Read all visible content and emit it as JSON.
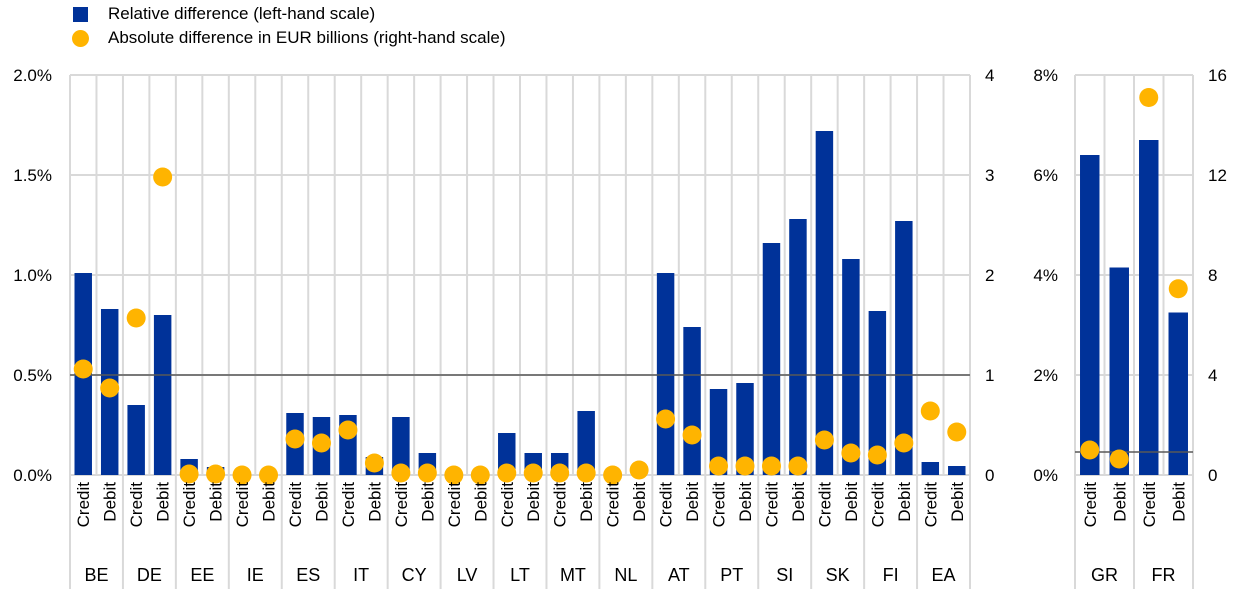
{
  "legend": {
    "bar_label": "Relative difference (left-hand scale)",
    "dot_label": "Absolute difference in EUR billions (right-hand scale)"
  },
  "colors": {
    "bar": "#003299",
    "dot": "#FFB400",
    "grid": "#D9D9D9",
    "refline": "#595959"
  },
  "chart_data": [
    {
      "type": "bar",
      "panel": "main",
      "title": "",
      "left_axis": {
        "min": 0,
        "max": 2.0,
        "ticks": [
          0,
          0.5,
          1.0,
          1.5,
          2.0
        ],
        "tick_labels": [
          "0.0%",
          "0.5%",
          "1.0%",
          "1.5%",
          "2.0%"
        ]
      },
      "right_axis": {
        "min": 0,
        "max": 4,
        "ticks": [
          0,
          1,
          2,
          3,
          4
        ],
        "tick_labels": [
          "0",
          "1",
          "2",
          "3",
          "4"
        ]
      },
      "reference_line_left": 0.5,
      "groups": [
        "BE",
        "DE",
        "EE",
        "IE",
        "ES",
        "IT",
        "CY",
        "LV",
        "LT",
        "MT",
        "NL",
        "AT",
        "PT",
        "SI",
        "SK",
        "FI",
        "EA"
      ],
      "subcategories": [
        "Credit",
        "Debit"
      ],
      "series": [
        {
          "name": "Relative difference (left-hand scale)",
          "axis": "left",
          "values": [
            1.01,
            0.83,
            0.35,
            0.8,
            0.08,
            0.04,
            0,
            0,
            0.31,
            0.29,
            0.3,
            0.09,
            0.29,
            0.11,
            0,
            0,
            0.21,
            0.11,
            0.11,
            0.32,
            0,
            0,
            1.01,
            0.74,
            0.43,
            0.46,
            1.16,
            1.28,
            1.72,
            1.08,
            0.82,
            1.27,
            0.065,
            0.045
          ]
        },
        {
          "name": "Absolute difference in EUR billions (right-hand scale)",
          "axis": "right",
          "values": [
            1.06,
            0.87,
            1.57,
            2.98,
            0.01,
            0.01,
            0,
            0,
            0.36,
            0.32,
            0.45,
            0.12,
            0.02,
            0.02,
            0,
            0,
            0.02,
            0.02,
            0.02,
            0.02,
            0,
            0.05,
            0.56,
            0.4,
            0.09,
            0.09,
            0.09,
            0.09,
            0.35,
            0.22,
            0.2,
            0.32,
            0.64,
            0.43
          ]
        }
      ]
    },
    {
      "type": "bar",
      "panel": "side",
      "title": "",
      "left_axis": {
        "min": 0,
        "max": 8,
        "ticks": [
          0,
          2,
          4,
          6,
          8
        ],
        "tick_labels": [
          "0%",
          "2%",
          "4%",
          "6%",
          "8%"
        ]
      },
      "right_axis": {
        "min": 0,
        "max": 16,
        "ticks": [
          0,
          4,
          8,
          12,
          16
        ],
        "tick_labels": [
          "0",
          "4",
          "8",
          "12",
          "16"
        ]
      },
      "reference_line_left": 0.46,
      "groups": [
        "GR",
        "FR"
      ],
      "subcategories": [
        "Credit",
        "Debit"
      ],
      "series": [
        {
          "name": "Relative difference (left-hand scale)",
          "axis": "left",
          "values": [
            6.4,
            4.15,
            6.7,
            3.25
          ]
        },
        {
          "name": "Absolute difference in EUR billions (right-hand scale)",
          "axis": "right",
          "values": [
            1.0,
            0.64,
            15.1,
            7.45
          ]
        }
      ]
    }
  ]
}
